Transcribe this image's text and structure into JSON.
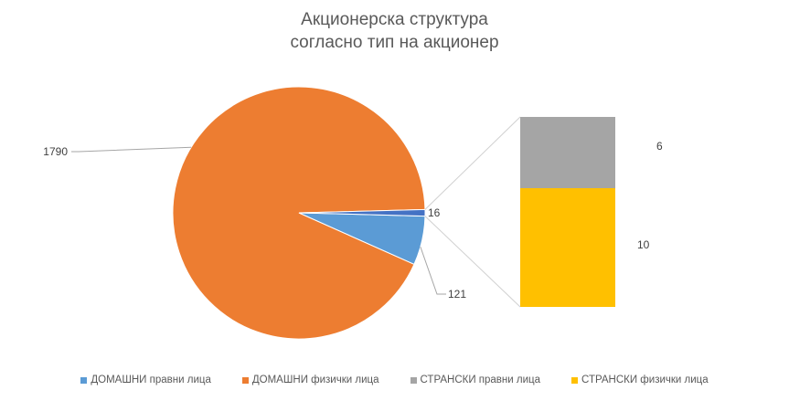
{
  "chart_data": {
    "type": "pie",
    "title_line1": "Акционерска структура",
    "title_line2": "согласно тип на акционер",
    "slices": [
      {
        "name": "ДОМАШНИ правни лица",
        "value": 121,
        "color": "#5B9BD5",
        "label": "121"
      },
      {
        "name": "ДОМАШНИ физички лица",
        "value": 1790,
        "color": "#ED7D31",
        "label": "1790"
      },
      {
        "name": "СТРАНСКИ правни лица",
        "value": 6,
        "color": "#A5A5A5",
        "label": "6"
      },
      {
        "name": "СТРАНСКИ физички лица",
        "value": 10,
        "color": "#FFC000",
        "label": "10"
      }
    ],
    "other_group_label": "16",
    "legend_position": "bottom"
  }
}
